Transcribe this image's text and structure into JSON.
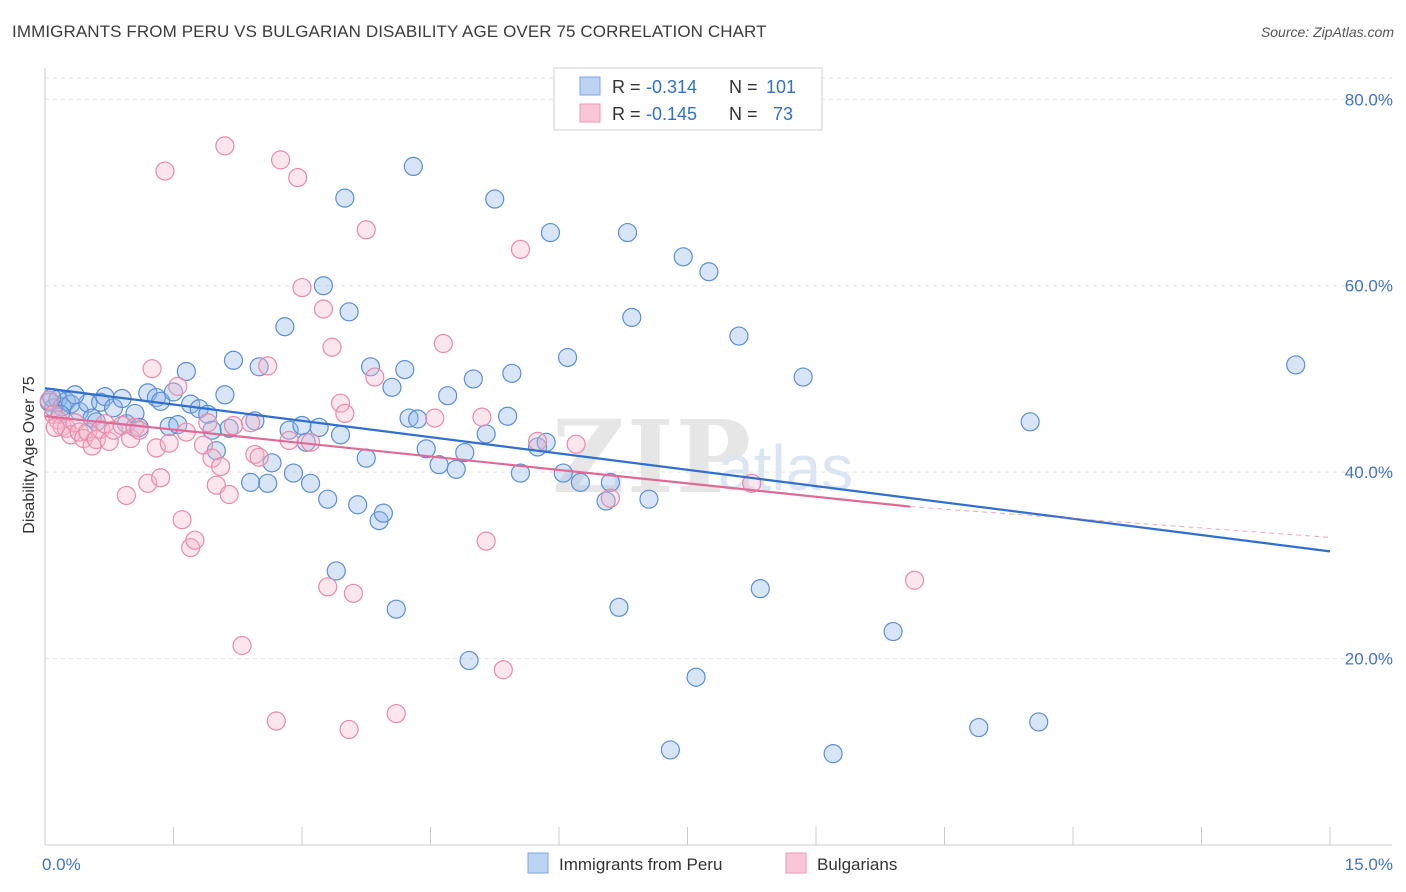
{
  "title": "IMMIGRANTS FROM PERU VS BULGARIAN DISABILITY AGE OVER 75 CORRELATION CHART",
  "source": "Source: ZipAtlas.com",
  "chart_data": {
    "type": "scatter",
    "title": "IMMIGRANTS FROM PERU VS BULGARIAN DISABILITY AGE OVER 75 CORRELATION CHART",
    "xlabel": "",
    "ylabel": "Disability Age Over 75",
    "xlim": [
      0,
      15
    ],
    "ylim": [
      0,
      84
    ],
    "x_ticks": [
      {
        "value": 0,
        "label": "0.0%"
      },
      {
        "value": 15,
        "label": "15.0%"
      }
    ],
    "y_ticks": [
      {
        "value": 20,
        "label": "20.0%"
      },
      {
        "value": 40,
        "label": "40.0%"
      },
      {
        "value": 60,
        "label": "60.0%"
      },
      {
        "value": 80,
        "label": "80.0%"
      }
    ],
    "grid": "horizontal-dashed",
    "legend": {
      "placement": "top-center",
      "rows": [
        {
          "r_label": "R =",
          "r_value": "-0.314",
          "n_label": "N =",
          "n_value": "101"
        },
        {
          "r_label": "R =",
          "r_value": "-0.145",
          "n_label": "N =",
          "n_value": "73"
        }
      ]
    },
    "watermark": {
      "zip": "ZIP",
      "atlas": "atlas"
    },
    "series": [
      {
        "name": "Immigrants from Peru",
        "color": "#8fb4e8",
        "stroke": "#5b8fd6",
        "trend": {
          "x0": 0.0,
          "y0": 49.0,
          "x1": 15.0,
          "y1": 31.5,
          "color": "#2f6fd0",
          "dashed_from": null
        },
        "points": [
          [
            0.05,
            47.5
          ],
          [
            0.1,
            46.9
          ],
          [
            0.15,
            47.8
          ],
          [
            0.2,
            47.0
          ],
          [
            0.25,
            47.6
          ],
          [
            0.3,
            47.3
          ],
          [
            0.4,
            46.5
          ],
          [
            0.5,
            47.4
          ],
          [
            0.55,
            45.8
          ],
          [
            0.65,
            47.5
          ],
          [
            0.7,
            48.1
          ],
          [
            0.8,
            46.9
          ],
          [
            0.9,
            47.9
          ],
          [
            0.95,
            45.2
          ],
          [
            1.05,
            46.3
          ],
          [
            1.1,
            44.8
          ],
          [
            1.2,
            48.5
          ],
          [
            1.3,
            48.0
          ],
          [
            1.35,
            47.6
          ],
          [
            1.45,
            44.9
          ],
          [
            1.5,
            48.6
          ],
          [
            1.55,
            45.1
          ],
          [
            1.65,
            50.8
          ],
          [
            1.7,
            47.3
          ],
          [
            1.8,
            46.8
          ],
          [
            1.9,
            46.2
          ],
          [
            1.95,
            44.5
          ],
          [
            2.0,
            42.3
          ],
          [
            2.1,
            48.3
          ],
          [
            2.15,
            44.7
          ],
          [
            2.2,
            52.0
          ],
          [
            2.4,
            38.9
          ],
          [
            2.45,
            45.5
          ],
          [
            2.5,
            51.3
          ],
          [
            2.6,
            38.8
          ],
          [
            2.65,
            41.0
          ],
          [
            2.8,
            55.6
          ],
          [
            2.85,
            44.5
          ],
          [
            2.9,
            39.9
          ],
          [
            3.0,
            45.0
          ],
          [
            3.05,
            43.2
          ],
          [
            3.1,
            38.8
          ],
          [
            3.2,
            44.8
          ],
          [
            3.25,
            60.0
          ],
          [
            3.3,
            37.1
          ],
          [
            3.4,
            29.4
          ],
          [
            3.45,
            44.0
          ],
          [
            3.5,
            69.4
          ],
          [
            3.55,
            57.2
          ],
          [
            3.65,
            36.5
          ],
          [
            3.75,
            41.5
          ],
          [
            3.8,
            51.3
          ],
          [
            3.9,
            34.8
          ],
          [
            3.95,
            35.6
          ],
          [
            4.05,
            49.1
          ],
          [
            4.1,
            25.3
          ],
          [
            4.2,
            51.0
          ],
          [
            4.25,
            45.8
          ],
          [
            4.3,
            72.8
          ],
          [
            4.35,
            45.7
          ],
          [
            4.45,
            42.5
          ],
          [
            4.6,
            40.8
          ],
          [
            4.7,
            48.2
          ],
          [
            4.8,
            40.3
          ],
          [
            4.9,
            42.1
          ],
          [
            4.95,
            19.8
          ],
          [
            5.0,
            50.0
          ],
          [
            5.15,
            44.1
          ],
          [
            5.25,
            69.3
          ],
          [
            5.4,
            46.0
          ],
          [
            5.45,
            50.6
          ],
          [
            5.55,
            39.9
          ],
          [
            5.75,
            42.7
          ],
          [
            5.85,
            43.2
          ],
          [
            5.9,
            65.7
          ],
          [
            6.05,
            39.9
          ],
          [
            6.1,
            52.3
          ],
          [
            6.25,
            38.9
          ],
          [
            6.55,
            36.9
          ],
          [
            6.6,
            38.9
          ],
          [
            6.7,
            25.5
          ],
          [
            6.8,
            65.7
          ],
          [
            6.85,
            56.6
          ],
          [
            7.05,
            37.1
          ],
          [
            7.3,
            10.2
          ],
          [
            7.45,
            63.1
          ],
          [
            7.6,
            18.0
          ],
          [
            7.75,
            61.5
          ],
          [
            8.1,
            54.6
          ],
          [
            8.35,
            27.5
          ],
          [
            8.85,
            50.2
          ],
          [
            9.2,
            9.8
          ],
          [
            9.9,
            22.9
          ],
          [
            10.9,
            12.6
          ],
          [
            11.5,
            45.4
          ],
          [
            11.6,
            13.2
          ],
          [
            14.6,
            51.5
          ],
          [
            0.08,
            48.0
          ],
          [
            0.18,
            46.2
          ],
          [
            0.35,
            48.3
          ],
          [
            0.6,
            45.4
          ]
        ]
      },
      {
        "name": "Bulgarians",
        "color": "#f4b6cb",
        "stroke": "#e88aa8",
        "trend": {
          "x0": 0.0,
          "y0": 46.0,
          "x1": 10.1,
          "y1": 36.3,
          "color": "#e06a96",
          "dashed_to": {
            "x": 15.0,
            "y": 33.0
          }
        },
        "points": [
          [
            0.05,
            47.7
          ],
          [
            0.1,
            46.2
          ],
          [
            0.15,
            45.6
          ],
          [
            0.2,
            44.9
          ],
          [
            0.25,
            44.7
          ],
          [
            0.3,
            44.0
          ],
          [
            0.35,
            45.3
          ],
          [
            0.4,
            44.3
          ],
          [
            0.45,
            43.6
          ],
          [
            0.5,
            44.3
          ],
          [
            0.55,
            42.8
          ],
          [
            0.6,
            43.5
          ],
          [
            0.65,
            44.6
          ],
          [
            0.7,
            45.2
          ],
          [
            0.75,
            43.3
          ],
          [
            0.8,
            44.5
          ],
          [
            0.9,
            45.0
          ],
          [
            0.95,
            37.5
          ],
          [
            1.0,
            43.6
          ],
          [
            1.05,
            44.8
          ],
          [
            1.1,
            44.5
          ],
          [
            1.2,
            38.8
          ],
          [
            1.25,
            51.1
          ],
          [
            1.3,
            42.6
          ],
          [
            1.35,
            39.4
          ],
          [
            1.4,
            72.3
          ],
          [
            1.45,
            43.1
          ],
          [
            1.55,
            49.2
          ],
          [
            1.6,
            34.9
          ],
          [
            1.65,
            44.3
          ],
          [
            1.7,
            31.9
          ],
          [
            1.75,
            32.7
          ],
          [
            1.85,
            42.9
          ],
          [
            1.9,
            45.3
          ],
          [
            1.95,
            41.5
          ],
          [
            2.0,
            38.6
          ],
          [
            2.05,
            40.6
          ],
          [
            2.1,
            75.0
          ],
          [
            2.15,
            37.6
          ],
          [
            2.2,
            45.0
          ],
          [
            2.3,
            21.4
          ],
          [
            2.4,
            45.3
          ],
          [
            2.45,
            41.9
          ],
          [
            2.5,
            41.6
          ],
          [
            2.6,
            51.4
          ],
          [
            2.7,
            13.3
          ],
          [
            2.75,
            73.5
          ],
          [
            2.85,
            43.4
          ],
          [
            2.95,
            71.6
          ],
          [
            3.0,
            59.8
          ],
          [
            3.1,
            43.2
          ],
          [
            3.25,
            57.5
          ],
          [
            3.3,
            27.7
          ],
          [
            3.35,
            53.4
          ],
          [
            3.45,
            47.4
          ],
          [
            3.5,
            46.3
          ],
          [
            3.55,
            12.4
          ],
          [
            3.6,
            27.0
          ],
          [
            3.75,
            66.0
          ],
          [
            3.85,
            50.2
          ],
          [
            4.1,
            14.1
          ],
          [
            4.55,
            45.8
          ],
          [
            4.65,
            53.8
          ],
          [
            5.1,
            45.9
          ],
          [
            5.15,
            32.6
          ],
          [
            5.35,
            18.8
          ],
          [
            5.55,
            63.9
          ],
          [
            5.75,
            43.3
          ],
          [
            6.2,
            43.0
          ],
          [
            6.6,
            37.2
          ],
          [
            8.25,
            38.8
          ],
          [
            10.15,
            28.4
          ],
          [
            0.12,
            44.8
          ]
        ]
      }
    ]
  }
}
